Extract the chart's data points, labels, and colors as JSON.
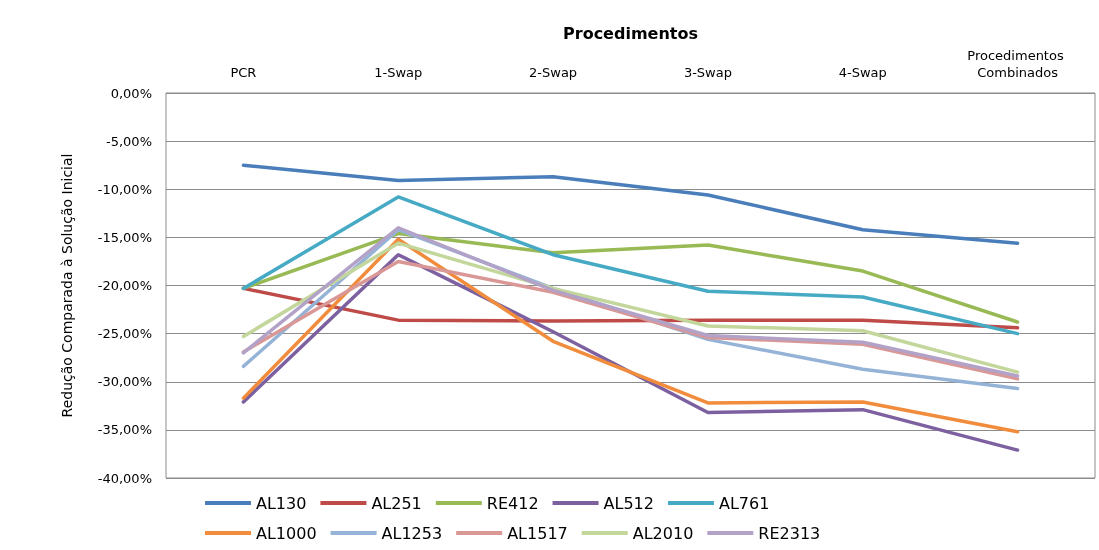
{
  "chart_data": {
    "type": "line",
    "xlabel": "Procedimentos",
    "ylabel": "Redução Comparada à Solução Inicial",
    "categories": [
      "PCR",
      "1-Swap",
      "2-Swap",
      "3-Swap",
      "4-Swap",
      "Procedimentos Combinados"
    ],
    "series": [
      {
        "name": "AL130",
        "color": "#4a7ebb",
        "values": [
          -7.5,
          -9.1,
          -8.7,
          -10.6,
          -14.2,
          -15.6
        ]
      },
      {
        "name": "AL251",
        "color": "#be4b48",
        "values": [
          -20.3,
          -23.6,
          -23.7,
          -23.6,
          -23.6,
          -24.4
        ]
      },
      {
        "name": "RE412",
        "color": "#98b954",
        "values": [
          -20.3,
          -14.6,
          -16.6,
          -15.8,
          -18.5,
          -23.8
        ]
      },
      {
        "name": "AL512",
        "color": "#7d60a0",
        "values": [
          -32.1,
          -16.8,
          -24.8,
          -33.2,
          -32.9,
          -37.1
        ]
      },
      {
        "name": "AL761",
        "color": "#46aac5",
        "values": [
          -20.3,
          -10.8,
          -16.8,
          -20.6,
          -21.2,
          -25.0
        ]
      },
      {
        "name": "AL1000",
        "color": "#f08c3c",
        "values": [
          -31.7,
          -15.2,
          -25.8,
          -32.2,
          -32.1,
          -35.2
        ]
      },
      {
        "name": "AL1253",
        "color": "#95b3d7",
        "values": [
          -28.4,
          -14.2,
          -20.3,
          -25.6,
          -28.7,
          -30.7
        ]
      },
      {
        "name": "AL1517",
        "color": "#d99795",
        "values": [
          -26.9,
          -17.5,
          -20.7,
          -25.4,
          -26.1,
          -29.7
        ]
      },
      {
        "name": "AL2010",
        "color": "#c3d69b",
        "values": [
          -25.3,
          -15.6,
          -20.3,
          -24.2,
          -24.7,
          -29.0
        ]
      },
      {
        "name": "RE2313",
        "color": "#b3a2c7",
        "values": [
          -27.0,
          -14.0,
          -20.5,
          -25.2,
          -25.9,
          -29.4
        ]
      }
    ],
    "ylim": [
      -40,
      0
    ],
    "yticks": [
      {
        "value": 0,
        "label": "0,00%"
      },
      {
        "value": -5,
        "label": "-5,00%"
      },
      {
        "value": -10,
        "label": "-10,00%"
      },
      {
        "value": -15,
        "label": "-15,00%"
      },
      {
        "value": -20,
        "label": "-20,00%"
      },
      {
        "value": -25,
        "label": "-25,00%"
      },
      {
        "value": -30,
        "label": "-30,00%"
      },
      {
        "value": -35,
        "label": "-35,00%"
      },
      {
        "value": -40,
        "label": "-40,00%"
      }
    ],
    "grid": "y",
    "legend": "bottom",
    "marker": "none",
    "line_style": "solid"
  }
}
